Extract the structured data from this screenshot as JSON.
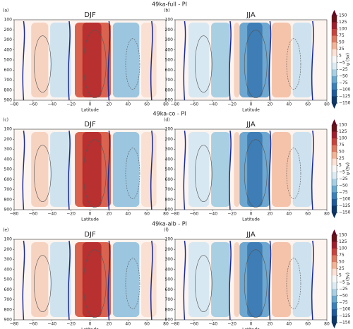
{
  "figure": {
    "xlabel": "Latitude",
    "xlim": [
      -80,
      80
    ],
    "xticks": [
      {
        "value": -80,
        "label": "−80"
      },
      {
        "value": -60,
        "label": "−60"
      },
      {
        "value": -40,
        "label": "−40"
      },
      {
        "value": -20,
        "label": "−20"
      },
      0,
      20,
      40,
      60,
      80
    ],
    "ylim": [
      100,
      900
    ],
    "y_inverted": true,
    "yticks": [
      100,
      200,
      300,
      400,
      500,
      600,
      700,
      800,
      900
    ],
    "colorbar": {
      "label": "ψ (Sv)",
      "ticks": [
        150,
        125,
        100,
        75,
        50,
        25,
        5,
        {
          "value": -5,
          "label": "−5"
        },
        {
          "value": -25,
          "label": "−25"
        },
        {
          "value": -50,
          "label": "−50"
        },
        {
          "value": -75,
          "label": "−75"
        },
        {
          "value": -100,
          "label": "−100"
        },
        {
          "value": -125,
          "label": "−125"
        },
        {
          "value": -150,
          "label": "−150"
        }
      ]
    },
    "rows": [
      {
        "title": "49ka-full - PI",
        "panels": [
          {
            "label": "(a)",
            "title": "DJF"
          },
          {
            "label": "(b)",
            "title": "JJA"
          }
        ]
      },
      {
        "title": "49ka-co - PI",
        "panels": [
          {
            "label": "(c)",
            "title": "DJF"
          },
          {
            "label": "(d)",
            "title": "JJA"
          }
        ]
      },
      {
        "title": "49ka-alb - PI",
        "panels": [
          {
            "label": "(e)",
            "title": "DJF"
          },
          {
            "label": "(f)",
            "title": "JJA"
          }
        ]
      }
    ]
  }
}
